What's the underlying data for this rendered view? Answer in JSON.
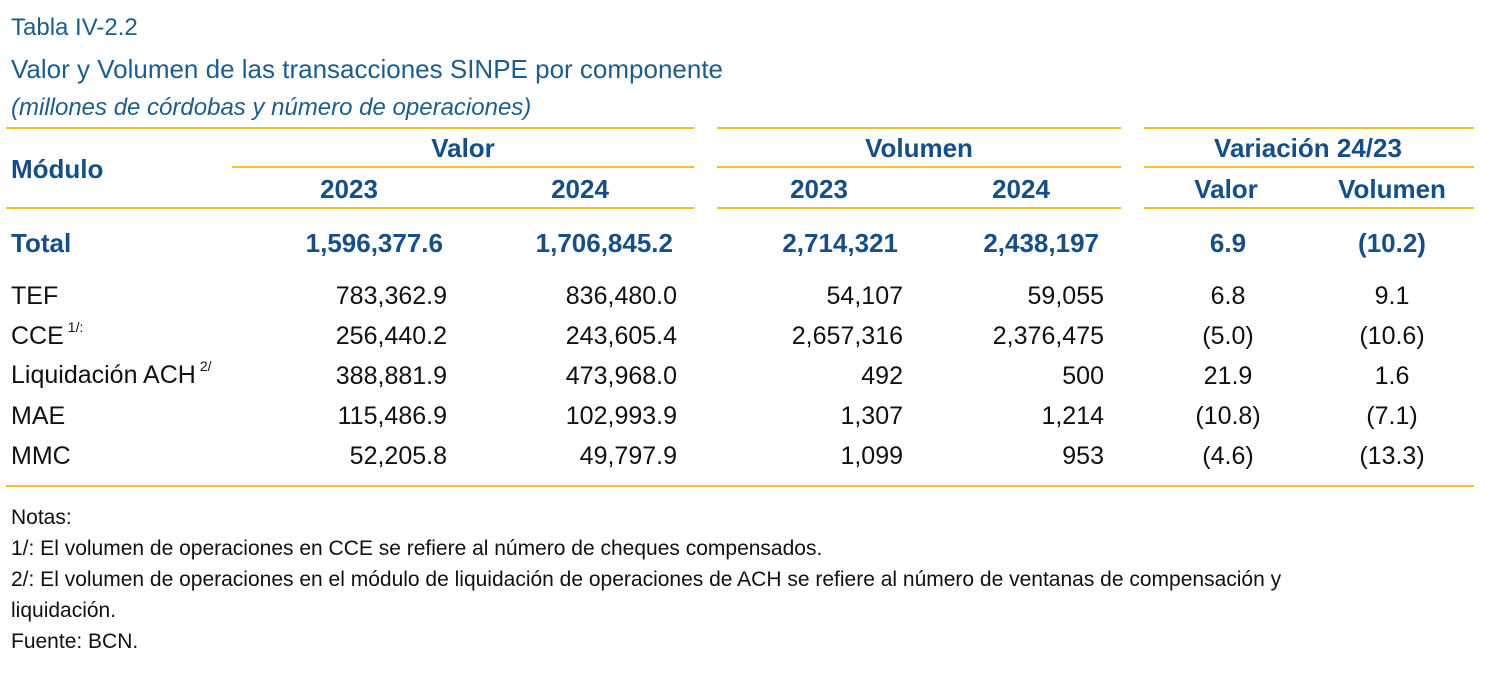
{
  "header": {
    "label": "Tabla IV-2.2",
    "title": "Valor y Volumen de las transacciones SINPE por componente",
    "subtitle": "(millones de córdobas y número de operaciones)"
  },
  "columns": {
    "modulo": "Módulo",
    "group_valor": "Valor",
    "group_volumen": "Volumen",
    "group_variacion": "Variación 24/23",
    "valor_2023": "2023",
    "valor_2024": "2024",
    "volumen_2023": "2023",
    "volumen_2024": "2024",
    "var_valor": "Valor",
    "var_volumen": "Volumen"
  },
  "total": {
    "label": "Total",
    "valor_2023": "1,596,377.6",
    "valor_2024": "1,706,845.2",
    "volumen_2023": "2,714,321",
    "volumen_2024": "2,438,197",
    "var_valor": "6.9",
    "var_volumen": "(10.2)"
  },
  "rows": [
    {
      "modulo": "TEF",
      "note": "",
      "valor_2023": "783,362.9",
      "valor_2024": "836,480.0",
      "volumen_2023": "54,107",
      "volumen_2024": "59,055",
      "var_valor": "6.8",
      "var_volumen": "9.1"
    },
    {
      "modulo": "CCE",
      "note": "1/:",
      "valor_2023": "256,440.2",
      "valor_2024": "243,605.4",
      "volumen_2023": "2,657,316",
      "volumen_2024": "2,376,475",
      "var_valor": "(5.0)",
      "var_volumen": "(10.6)"
    },
    {
      "modulo": "Liquidación ACH",
      "note": "2/",
      "valor_2023": "388,881.9",
      "valor_2024": "473,968.0",
      "volumen_2023": "492",
      "volumen_2024": "500",
      "var_valor": "21.9",
      "var_volumen": "1.6"
    },
    {
      "modulo": "MAE",
      "note": "",
      "valor_2023": "115,486.9",
      "valor_2024": "102,993.9",
      "volumen_2023": "1,307",
      "volumen_2024": "1,214",
      "var_valor": "(10.8)",
      "var_volumen": "(7.1)"
    },
    {
      "modulo": "MMC",
      "note": "",
      "valor_2023": "52,205.8",
      "valor_2024": "49,797.9",
      "volumen_2023": "1,099",
      "volumen_2024": "953",
      "var_valor": "(4.6)",
      "var_volumen": "(13.3)"
    }
  ],
  "notes": {
    "heading": "Notas:",
    "note1": "1/: El volumen de operaciones en CCE se refiere al número de cheques compensados.",
    "note2_line1": "2/: El volumen de operaciones en el módulo de liquidación de operaciones de ACH se refiere al número de ventanas de compensación y",
    "note2_line2": "liquidación.",
    "source": "Fuente: BCN."
  }
}
